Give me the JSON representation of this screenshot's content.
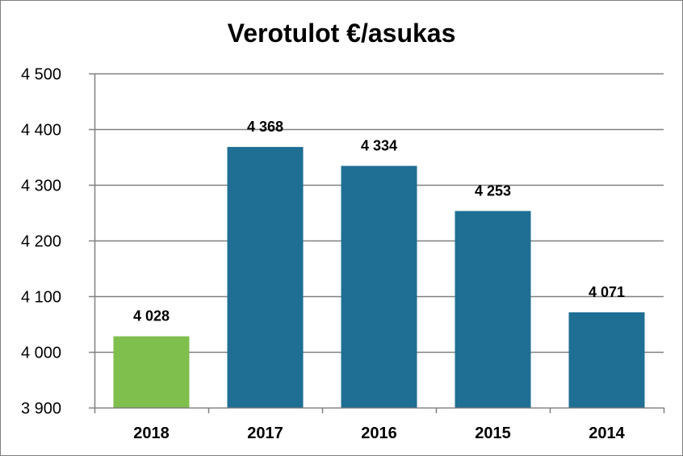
{
  "chart_data": {
    "type": "bar",
    "title": "Verotulot €/asukas",
    "categories": [
      "2018",
      "2017",
      "2016",
      "2015",
      "2014"
    ],
    "values": [
      4028,
      4368,
      4334,
      4253,
      4071
    ],
    "data_labels": [
      "4 028",
      "4 368",
      "4 334",
      "4 253",
      "4 071"
    ],
    "y_ticks": [
      3900,
      4000,
      4100,
      4200,
      4300,
      4400,
      4500
    ],
    "y_tick_labels": [
      "3 900",
      "4 000",
      "4 100",
      "4 200",
      "4 300",
      "4 400",
      "4 500"
    ],
    "ylim": [
      3900,
      4500
    ],
    "grid": true,
    "legend": "none",
    "colors": {
      "highlight": "#7fbf4d",
      "bar": "#1f6e94",
      "grid": "#808080"
    }
  }
}
